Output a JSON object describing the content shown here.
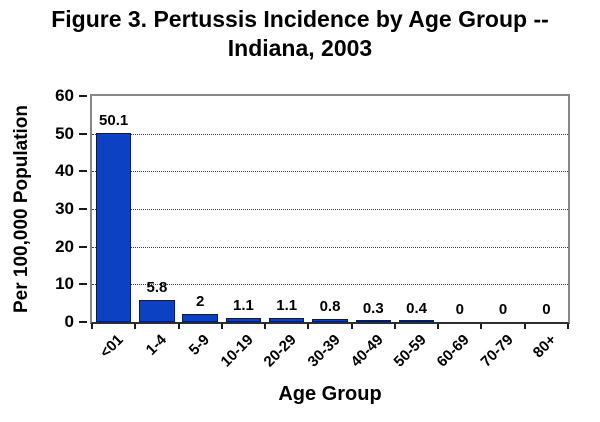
{
  "figure": {
    "title_line1": "Figure 3. Pertussis Incidence by Age Group --",
    "title_line2": "Indiana, 2003"
  },
  "chart_data": {
    "type": "bar",
    "title": "Figure 3. Pertussis Incidence by Age Group -- Indiana, 2003",
    "categories": [
      "<01",
      "1-4",
      "5-9",
      "10-19",
      "20-29",
      "30-39",
      "40-49",
      "50-59",
      "60-69",
      "70-79",
      "80+"
    ],
    "values": [
      50.1,
      5.8,
      2,
      1.1,
      1.1,
      0.8,
      0.3,
      0.4,
      0,
      0,
      0
    ],
    "value_labels": [
      "50.1",
      "5.8",
      "2",
      "1.1",
      "1.1",
      "0.8",
      "0.3",
      "0.4",
      "0",
      "0",
      "0"
    ],
    "xlabel": "Age Group",
    "ylabel": "Per 100,000 Population",
    "ylim": [
      0,
      60
    ],
    "yticks": [
      0,
      10,
      20,
      30,
      40,
      50,
      60
    ],
    "grid": "horizontal-dotted",
    "legend": "none",
    "colors": {
      "bar_fill": "#0d41c4",
      "bar_border": "#001a66",
      "text": "#000000",
      "plot_border": "#878787",
      "axis_line": "#2e2e2e",
      "background": "#ffffff"
    }
  }
}
